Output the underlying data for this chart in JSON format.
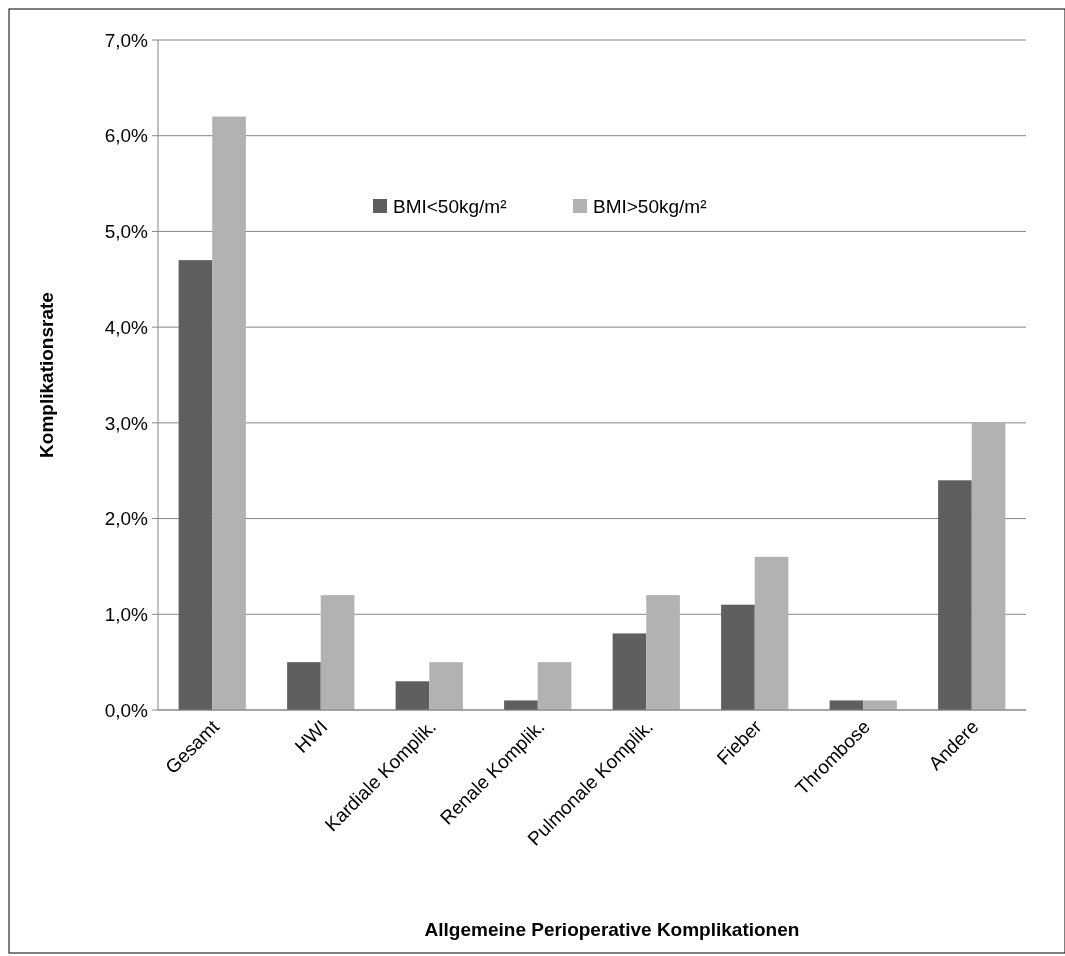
{
  "chart_data": {
    "type": "bar",
    "xlabel": "Allgemeine Perioperative Komplikationen",
    "ylabel": "Komplikationsrate",
    "categories": [
      "Gesamt",
      "HWI",
      "Kardiale Komplik.",
      "Renale Komplik.",
      "Pulmonale Komplik.",
      "Fieber",
      "Thrombose",
      "Andere"
    ],
    "series": [
      {
        "name": "BMI<50kg/m²",
        "color": "#5f5f5f",
        "values": [
          4.7,
          0.5,
          0.3,
          0.1,
          0.8,
          1.1,
          0.1,
          2.4
        ]
      },
      {
        "name": "BMI>50kg/m²",
        "color": "#b2b2b2",
        "values": [
          6.2,
          1.2,
          0.5,
          0.5,
          1.2,
          1.6,
          0.1,
          3.0
        ]
      }
    ],
    "ylim": [
      0,
      7
    ],
    "yticks": [
      {
        "value": 0,
        "label": "0,0%"
      },
      {
        "value": 1,
        "label": "1,0%"
      },
      {
        "value": 2,
        "label": "2,0%"
      },
      {
        "value": 3,
        "label": "3,0%"
      },
      {
        "value": 4,
        "label": "4,0%"
      },
      {
        "value": 5,
        "label": "5,0%"
      },
      {
        "value": 6,
        "label": "6,0%"
      },
      {
        "value": 7,
        "label": "7,0%"
      }
    ],
    "grid": "y",
    "legend": "top"
  }
}
